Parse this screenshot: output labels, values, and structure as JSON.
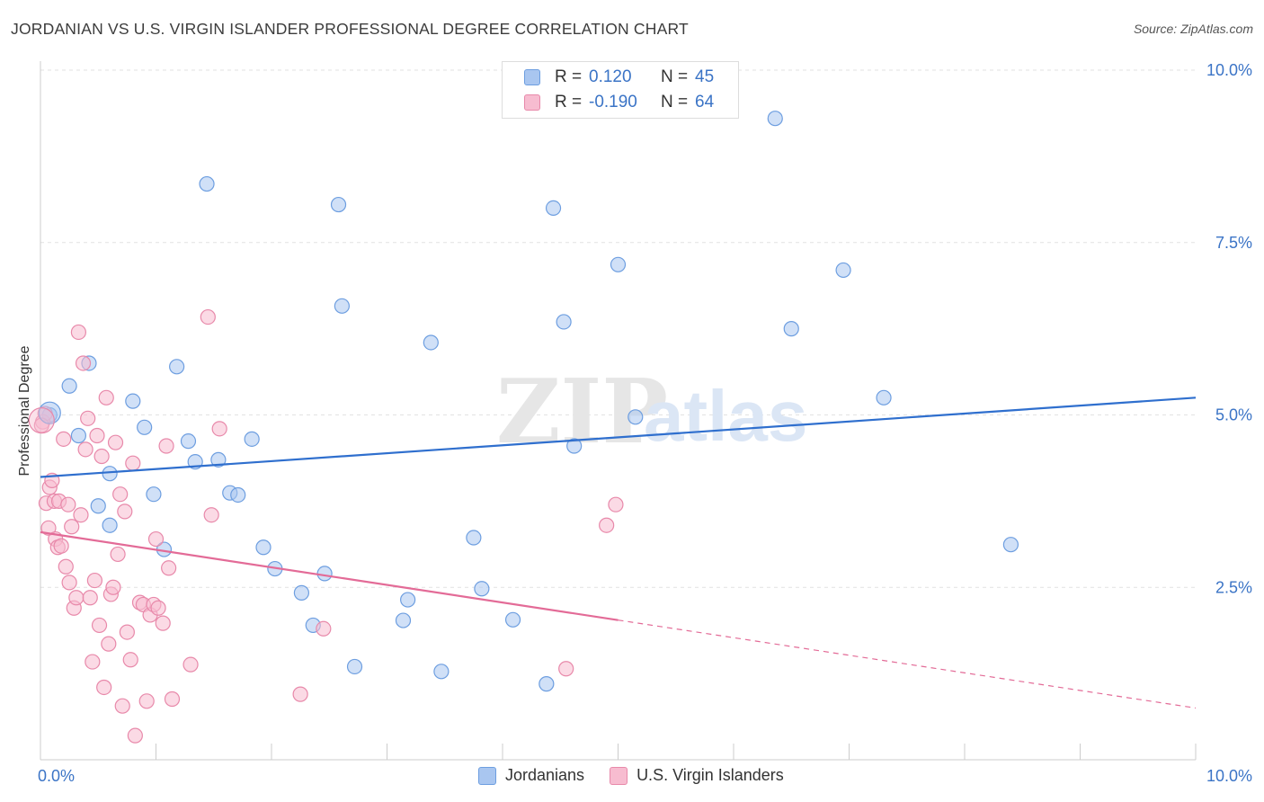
{
  "title": "JORDANIAN VS U.S. VIRGIN ISLANDER PROFESSIONAL DEGREE CORRELATION CHART",
  "source": "Source: ZipAtlas.com",
  "watermark": {
    "zip": "ZIP",
    "atlas": "atlas"
  },
  "legend_top": [
    {
      "r_label": "R =",
      "r_value": "0.120",
      "n_label": "N =",
      "n_value": "45",
      "color": "#a9c6f0",
      "border": "#6d9ee0"
    },
    {
      "r_label": "R =",
      "r_value": "-0.190",
      "n_label": "N =",
      "n_value": "64",
      "color": "#f7bcd0",
      "border": "#e889aa"
    }
  ],
  "legend_bottom": [
    {
      "label": "Jordanians",
      "color": "#a9c6f0",
      "border": "#6d9ee0"
    },
    {
      "label": "U.S. Virgin Islanders",
      "color": "#f7bcd0",
      "border": "#e889aa"
    }
  ],
  "chart_data": {
    "type": "scatter",
    "ylabel": "Professional Degree",
    "xlabel": "",
    "xlim": [
      0,
      10
    ],
    "ylim": [
      0,
      10
    ],
    "x_tick_labels": [
      "0.0%",
      "10.0%"
    ],
    "y_ticks": [
      {
        "value": 2.5,
        "label": "2.5%"
      },
      {
        "value": 5.0,
        "label": "5.0%"
      },
      {
        "value": 7.5,
        "label": "7.5%"
      },
      {
        "value": 10.0,
        "label": "10.0%"
      }
    ],
    "grid": true,
    "legend_position": "top-center",
    "series": [
      {
        "name": "Jordanians",
        "color": "#a9c6f0",
        "stroke": "#6d9ee0",
        "trend_color": "#2f6fce",
        "trend": {
          "x0": 0,
          "y0": 4.1,
          "x1": 10,
          "y1": 5.25,
          "dashed_from": null
        },
        "points": [
          [
            0.08,
            5.0
          ],
          [
            0.25,
            5.42
          ],
          [
            0.33,
            4.7
          ],
          [
            0.42,
            5.75
          ],
          [
            0.5,
            3.68
          ],
          [
            0.6,
            4.15
          ],
          [
            0.6,
            3.4
          ],
          [
            0.8,
            5.2
          ],
          [
            0.9,
            4.82
          ],
          [
            0.98,
            3.85
          ],
          [
            1.07,
            3.05
          ],
          [
            1.18,
            5.7
          ],
          [
            1.28,
            4.62
          ],
          [
            1.34,
            4.32
          ],
          [
            1.44,
            8.35
          ],
          [
            1.54,
            4.35
          ],
          [
            1.64,
            3.87
          ],
          [
            1.71,
            3.84
          ],
          [
            1.83,
            4.65
          ],
          [
            1.93,
            3.08
          ],
          [
            2.03,
            2.77
          ],
          [
            2.26,
            2.42
          ],
          [
            2.36,
            1.95
          ],
          [
            2.46,
            2.7
          ],
          [
            2.58,
            8.05
          ],
          [
            2.61,
            6.58
          ],
          [
            2.72,
            1.35
          ],
          [
            3.14,
            2.02
          ],
          [
            3.18,
            2.32
          ],
          [
            3.38,
            6.05
          ],
          [
            3.47,
            1.28
          ],
          [
            3.75,
            3.22
          ],
          [
            3.82,
            2.48
          ],
          [
            4.09,
            2.03
          ],
          [
            4.38,
            1.1
          ],
          [
            4.44,
            8.0
          ],
          [
            4.53,
            6.35
          ],
          [
            4.62,
            4.55
          ],
          [
            5.0,
            7.18
          ],
          [
            5.15,
            4.97
          ],
          [
            6.36,
            9.3
          ],
          [
            6.95,
            7.1
          ],
          [
            6.5,
            6.25
          ],
          [
            7.3,
            5.25
          ],
          [
            8.4,
            3.12
          ]
        ]
      },
      {
        "name": "U.S. Virgin Islanders",
        "color": "#f7bcd0",
        "stroke": "#e889aa",
        "trend_color": "#e36b97",
        "trend": {
          "x0": 0,
          "y0": 3.3,
          "x1": 10,
          "y1": 0.75,
          "dashed_from": 5.0
        },
        "points": [
          [
            0.02,
            4.9
          ],
          [
            0.04,
            5.02
          ],
          [
            0.05,
            3.72
          ],
          [
            0.07,
            3.36
          ],
          [
            0.08,
            3.95
          ],
          [
            0.1,
            4.05
          ],
          [
            0.12,
            3.75
          ],
          [
            0.13,
            3.2
          ],
          [
            0.15,
            3.08
          ],
          [
            0.16,
            3.75
          ],
          [
            0.18,
            3.1
          ],
          [
            0.2,
            4.65
          ],
          [
            0.22,
            2.8
          ],
          [
            0.24,
            3.7
          ],
          [
            0.25,
            2.57
          ],
          [
            0.27,
            3.38
          ],
          [
            0.29,
            2.2
          ],
          [
            0.31,
            2.35
          ],
          [
            0.33,
            6.2
          ],
          [
            0.35,
            3.55
          ],
          [
            0.37,
            5.75
          ],
          [
            0.39,
            4.5
          ],
          [
            0.41,
            4.95
          ],
          [
            0.43,
            2.35
          ],
          [
            0.45,
            1.42
          ],
          [
            0.47,
            2.6
          ],
          [
            0.49,
            4.7
          ],
          [
            0.51,
            1.95
          ],
          [
            0.53,
            4.4
          ],
          [
            0.55,
            1.05
          ],
          [
            0.57,
            5.25
          ],
          [
            0.59,
            1.68
          ],
          [
            0.61,
            2.4
          ],
          [
            0.63,
            2.5
          ],
          [
            0.65,
            4.6
          ],
          [
            0.67,
            2.98
          ],
          [
            0.69,
            3.85
          ],
          [
            0.71,
            0.78
          ],
          [
            0.73,
            3.6
          ],
          [
            0.75,
            1.85
          ],
          [
            0.78,
            1.45
          ],
          [
            0.8,
            4.3
          ],
          [
            0.82,
            0.35
          ],
          [
            0.86,
            2.28
          ],
          [
            0.89,
            2.25
          ],
          [
            0.92,
            0.85
          ],
          [
            0.95,
            2.1
          ],
          [
            0.98,
            2.25
          ],
          [
            1.0,
            3.2
          ],
          [
            1.02,
            2.2
          ],
          [
            1.06,
            1.98
          ],
          [
            1.09,
            4.55
          ],
          [
            1.11,
            2.78
          ],
          [
            1.14,
            0.88
          ],
          [
            1.3,
            1.38
          ],
          [
            1.45,
            6.42
          ],
          [
            1.48,
            3.55
          ],
          [
            1.55,
            4.8
          ],
          [
            2.25,
            0.95
          ],
          [
            2.45,
            1.9
          ],
          [
            4.55,
            1.32
          ],
          [
            4.9,
            3.4
          ],
          [
            4.98,
            3.7
          ],
          [
            0.01,
            4.85
          ]
        ]
      }
    ]
  }
}
